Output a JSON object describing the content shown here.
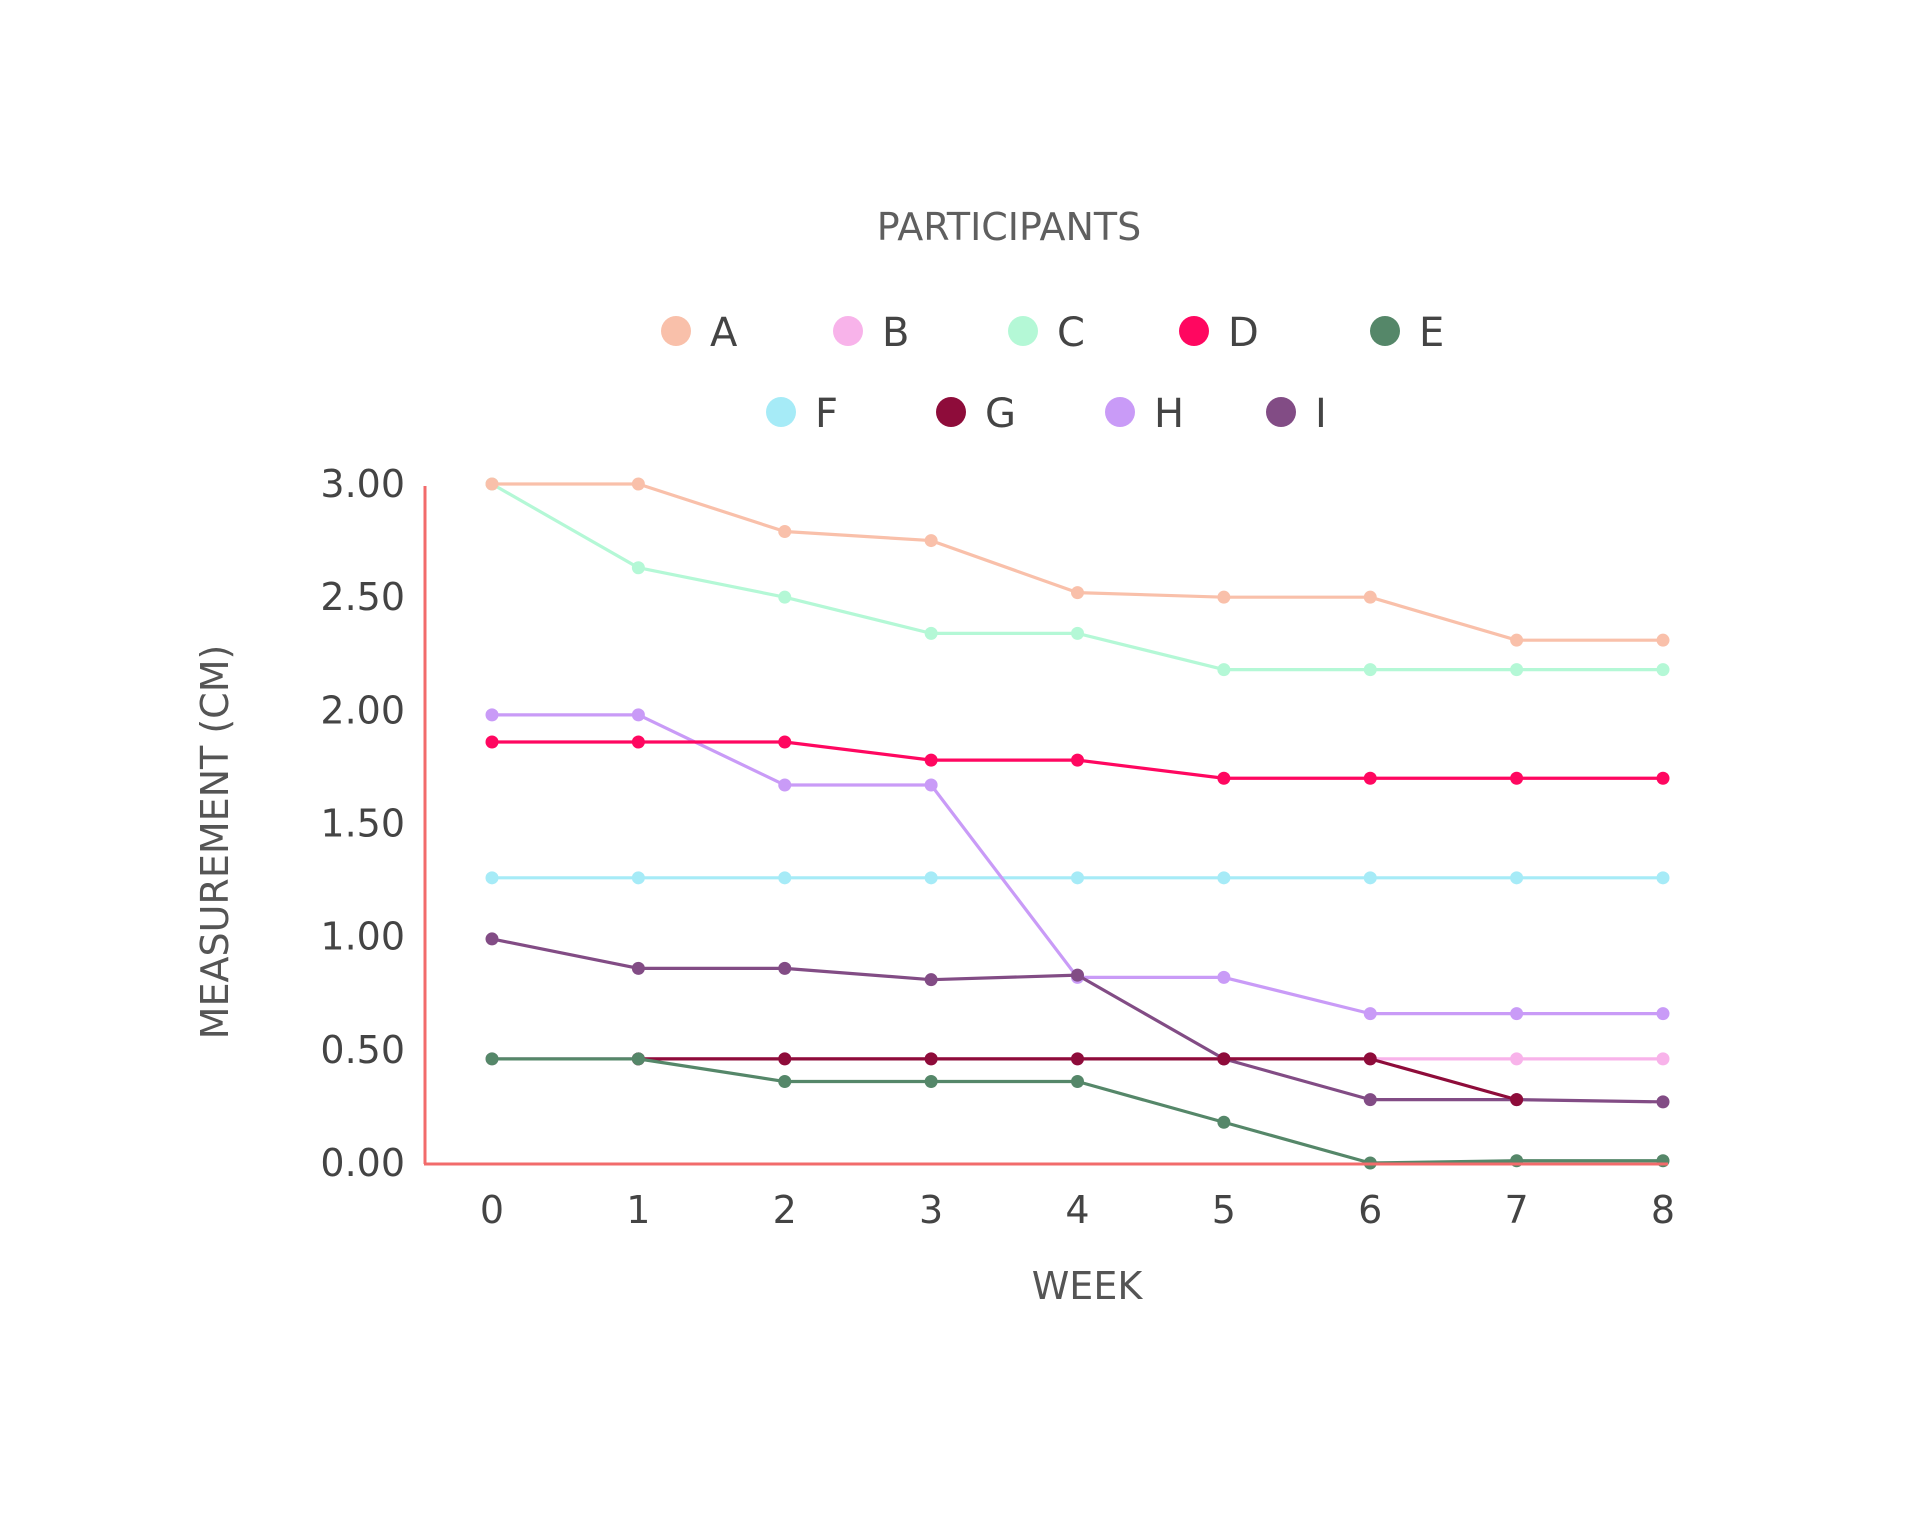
{
  "chart_data": {
    "type": "line",
    "title": "PARTICIPANTS",
    "xlabel": "WEEK",
    "ylabel": "MEASUREMENT (CM)",
    "x": [
      0,
      1,
      2,
      3,
      4,
      5,
      6,
      7,
      8
    ],
    "x_tick_labels": [
      "0",
      "1",
      "2",
      "3",
      "4",
      "5",
      "6",
      "7",
      "8"
    ],
    "y_tick_labels": [
      "0.00",
      "0.50",
      "1.00",
      "1.50",
      "2.00",
      "2.50",
      "3.00"
    ],
    "y_ticks": [
      0,
      0.5,
      1.0,
      1.5,
      2.0,
      2.5,
      3.0
    ],
    "ylim": [
      0,
      3.0
    ],
    "xlim": [
      0,
      8
    ],
    "grid": false,
    "legend_position": "top-center",
    "axis_color": "#f26b6b",
    "series": [
      {
        "name": "A",
        "color": "#f9c0aa",
        "values": [
          3.0,
          3.0,
          2.79,
          2.75,
          2.52,
          2.5,
          2.5,
          2.31,
          2.31
        ]
      },
      {
        "name": "B",
        "color": "#f8b3ea",
        "values": [
          0.46,
          0.46,
          0.46,
          0.46,
          0.46,
          0.46,
          0.46,
          0.46,
          0.46
        ]
      },
      {
        "name": "C",
        "color": "#b4f8d6",
        "values": [
          3.0,
          2.63,
          2.5,
          2.34,
          2.34,
          2.18,
          2.18,
          2.18,
          2.18
        ]
      },
      {
        "name": "D",
        "color": "#ff0760",
        "values": [
          1.86,
          1.86,
          1.86,
          1.78,
          1.78,
          1.7,
          1.7,
          1.7,
          1.7
        ]
      },
      {
        "name": "E",
        "color": "#558769",
        "values": [
          0.46,
          0.46,
          0.36,
          0.36,
          0.36,
          0.18,
          0.0,
          0.01,
          0.01
        ]
      },
      {
        "name": "F",
        "color": "#a6ebf7",
        "values": [
          1.26,
          1.26,
          1.26,
          1.26,
          1.26,
          1.26,
          1.26,
          1.26,
          1.26
        ]
      },
      {
        "name": "G",
        "color": "#8e0c3a",
        "values": [
          null,
          0.46,
          0.46,
          0.46,
          0.46,
          0.46,
          0.46,
          0.28,
          null
        ]
      },
      {
        "name": "H",
        "color": "#c99bf7",
        "values": [
          1.98,
          1.98,
          1.67,
          1.67,
          0.82,
          0.82,
          0.66,
          0.66,
          0.66
        ]
      },
      {
        "name": "I",
        "color": "#824c85",
        "values": [
          0.99,
          0.86,
          0.86,
          0.81,
          0.83,
          0.46,
          0.28,
          0.28,
          0.27
        ]
      }
    ]
  }
}
